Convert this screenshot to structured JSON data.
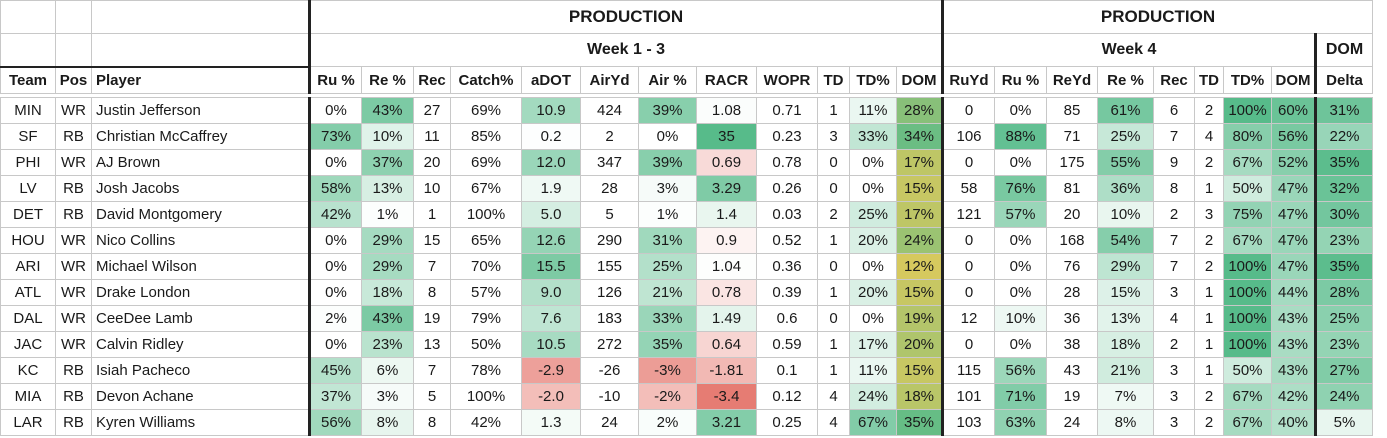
{
  "header": {
    "production_1": "PRODUCTION",
    "production_2": "PRODUCTION",
    "week_1_3": "Week 1 - 3",
    "week_4": "Week 4",
    "dom_top": "DOM",
    "dom_bottom": "Delta"
  },
  "columns": [
    "Team",
    "Pos",
    "Player",
    "Ru %",
    "Re %",
    "Rec",
    "Catch%",
    "aDOT",
    "AirYd",
    "Air %",
    "RACR",
    "WOPR",
    "TD",
    "TD%",
    "DOM",
    "RuYd",
    "Ru %",
    "ReYd",
    "Re %",
    "Rec",
    "TD",
    "TD%",
    "DOM"
  ],
  "rows": [
    {
      "team": "MIN",
      "pos": "WR",
      "player": "Justin Jefferson",
      "ru": "0%",
      "re": "43%",
      "rec": "27",
      "catch": "69%",
      "adot": "10.9",
      "airyd": "424",
      "air": "39%",
      "racr": "1.08",
      "wopr": "0.71",
      "td": "1",
      "tdp": "11%",
      "dom": "28%",
      "ruyd4": "0",
      "ru4": "0%",
      "reyd4": "85",
      "re4": "61%",
      "rec4": "6",
      "td4": "2",
      "tdp4": "100%",
      "dom4": "60%",
      "delta": "31%"
    },
    {
      "team": "SF",
      "pos": "RB",
      "player": "Christian McCaffrey",
      "ru": "73%",
      "re": "10%",
      "rec": "11",
      "catch": "85%",
      "adot": "0.2",
      "airyd": "2",
      "air": "0%",
      "racr": "35",
      "wopr": "0.23",
      "td": "3",
      "tdp": "33%",
      "dom": "34%",
      "ruyd4": "106",
      "ru4": "88%",
      "reyd4": "71",
      "re4": "25%",
      "rec4": "7",
      "td4": "4",
      "tdp4": "80%",
      "dom4": "56%",
      "delta": "22%"
    },
    {
      "team": "PHI",
      "pos": "WR",
      "player": "AJ Brown",
      "ru": "0%",
      "re": "37%",
      "rec": "20",
      "catch": "69%",
      "adot": "12.0",
      "airyd": "347",
      "air": "39%",
      "racr": "0.69",
      "wopr": "0.78",
      "td": "0",
      "tdp": "0%",
      "dom": "17%",
      "ruyd4": "0",
      "ru4": "0%",
      "reyd4": "175",
      "re4": "55%",
      "rec4": "9",
      "td4": "2",
      "tdp4": "67%",
      "dom4": "52%",
      "delta": "35%"
    },
    {
      "team": "LV",
      "pos": "RB",
      "player": "Josh Jacobs",
      "ru": "58%",
      "re": "13%",
      "rec": "10",
      "catch": "67%",
      "adot": "1.9",
      "airyd": "28",
      "air": "3%",
      "racr": "3.29",
      "wopr": "0.26",
      "td": "0",
      "tdp": "0%",
      "dom": "15%",
      "ruyd4": "58",
      "ru4": "76%",
      "reyd4": "81",
      "re4": "36%",
      "rec4": "8",
      "td4": "1",
      "tdp4": "50%",
      "dom4": "47%",
      "delta": "32%"
    },
    {
      "team": "DET",
      "pos": "RB",
      "player": "David Montgomery",
      "ru": "42%",
      "re": "1%",
      "rec": "1",
      "catch": "100%",
      "adot": "5.0",
      "airyd": "5",
      "air": "1%",
      "racr": "1.4",
      "wopr": "0.03",
      "td": "2",
      "tdp": "25%",
      "dom": "17%",
      "ruyd4": "121",
      "ru4": "57%",
      "reyd4": "20",
      "re4": "10%",
      "rec4": "2",
      "td4": "3",
      "tdp4": "75%",
      "dom4": "47%",
      "delta": "30%"
    },
    {
      "team": "HOU",
      "pos": "WR",
      "player": "Nico Collins",
      "ru": "0%",
      "re": "29%",
      "rec": "15",
      "catch": "65%",
      "adot": "12.6",
      "airyd": "290",
      "air": "31%",
      "racr": "0.9",
      "wopr": "0.52",
      "td": "1",
      "tdp": "20%",
      "dom": "24%",
      "ruyd4": "0",
      "ru4": "0%",
      "reyd4": "168",
      "re4": "54%",
      "rec4": "7",
      "td4": "2",
      "tdp4": "67%",
      "dom4": "47%",
      "delta": "23%"
    },
    {
      "team": "ARI",
      "pos": "WR",
      "player": "Michael Wilson",
      "ru": "0%",
      "re": "29%",
      "rec": "7",
      "catch": "70%",
      "adot": "15.5",
      "airyd": "155",
      "air": "25%",
      "racr": "1.04",
      "wopr": "0.36",
      "td": "0",
      "tdp": "0%",
      "dom": "12%",
      "ruyd4": "0",
      "ru4": "0%",
      "reyd4": "76",
      "re4": "29%",
      "rec4": "7",
      "td4": "2",
      "tdp4": "100%",
      "dom4": "47%",
      "delta": "35%"
    },
    {
      "team": "ATL",
      "pos": "WR",
      "player": "Drake London",
      "ru": "0%",
      "re": "18%",
      "rec": "8",
      "catch": "57%",
      "adot": "9.0",
      "airyd": "126",
      "air": "21%",
      "racr": "0.78",
      "wopr": "0.39",
      "td": "1",
      "tdp": "20%",
      "dom": "15%",
      "ruyd4": "0",
      "ru4": "0%",
      "reyd4": "28",
      "re4": "15%",
      "rec4": "3",
      "td4": "1",
      "tdp4": "100%",
      "dom4": "44%",
      "delta": "28%"
    },
    {
      "team": "DAL",
      "pos": "WR",
      "player": "CeeDee Lamb",
      "ru": "2%",
      "re": "43%",
      "rec": "19",
      "catch": "79%",
      "adot": "7.6",
      "airyd": "183",
      "air": "33%",
      "racr": "1.49",
      "wopr": "0.6",
      "td": "0",
      "tdp": "0%",
      "dom": "19%",
      "ruyd4": "12",
      "ru4": "10%",
      "reyd4": "36",
      "re4": "13%",
      "rec4": "4",
      "td4": "1",
      "tdp4": "100%",
      "dom4": "43%",
      "delta": "25%"
    },
    {
      "team": "JAC",
      "pos": "WR",
      "player": "Calvin Ridley",
      "ru": "0%",
      "re": "23%",
      "rec": "13",
      "catch": "50%",
      "adot": "10.5",
      "airyd": "272",
      "air": "35%",
      "racr": "0.64",
      "wopr": "0.59",
      "td": "1",
      "tdp": "17%",
      "dom": "20%",
      "ruyd4": "0",
      "ru4": "0%",
      "reyd4": "38",
      "re4": "18%",
      "rec4": "2",
      "td4": "1",
      "tdp4": "100%",
      "dom4": "43%",
      "delta": "23%"
    },
    {
      "team": "KC",
      "pos": "RB",
      "player": "Isiah Pacheco",
      "ru": "45%",
      "re": "6%",
      "rec": "7",
      "catch": "78%",
      "adot": "-2.9",
      "airyd": "-26",
      "air": "-3%",
      "racr": "-1.81",
      "wopr": "0.1",
      "td": "1",
      "tdp": "11%",
      "dom": "15%",
      "ruyd4": "115",
      "ru4": "56%",
      "reyd4": "43",
      "re4": "21%",
      "rec4": "3",
      "td4": "1",
      "tdp4": "50%",
      "dom4": "43%",
      "delta": "27%"
    },
    {
      "team": "MIA",
      "pos": "RB",
      "player": "Devon Achane",
      "ru": "37%",
      "re": "3%",
      "rec": "5",
      "catch": "100%",
      "adot": "-2.0",
      "airyd": "-10",
      "air": "-2%",
      "racr": "-3.4",
      "wopr": "0.12",
      "td": "4",
      "tdp": "24%",
      "dom": "18%",
      "ruyd4": "101",
      "ru4": "71%",
      "reyd4": "19",
      "re4": "7%",
      "rec4": "3",
      "td4": "2",
      "tdp4": "67%",
      "dom4": "42%",
      "delta": "24%"
    },
    {
      "team": "LAR",
      "pos": "RB",
      "player": "Kyren Williams",
      "ru": "56%",
      "re": "8%",
      "rec": "8",
      "catch": "42%",
      "adot": "1.3",
      "airyd": "24",
      "air": "2%",
      "racr": "3.21",
      "wopr": "0.25",
      "td": "4",
      "tdp": "67%",
      "dom": "35%",
      "ruyd4": "103",
      "ru4": "63%",
      "reyd4": "24",
      "re4": "8%",
      "rec4": "3",
      "td4": "2",
      "tdp4": "67%",
      "dom4": "40%",
      "delta": "5%"
    }
  ],
  "colors": {
    "green_dark": "#57bb8a",
    "yellow_dom": "#d6c95e",
    "red_neg": "#e67c73",
    "border_dark": "#222222"
  }
}
